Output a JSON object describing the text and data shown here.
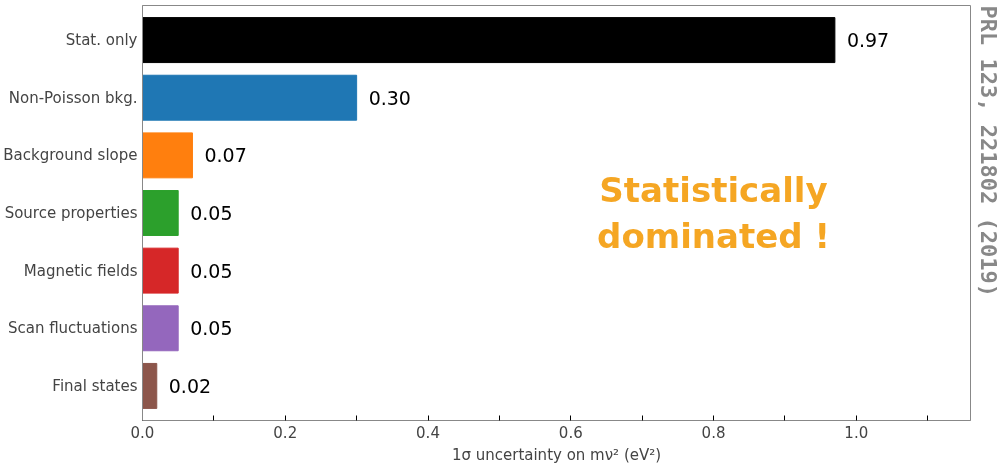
{
  "chart_data": {
    "type": "bar",
    "orientation": "horizontal",
    "categories": [
      "Stat. only",
      "Non-Poisson bkg.",
      "Background slope",
      "Source properties",
      "Magnetic fields",
      "Scan fluctuations",
      "Final states"
    ],
    "values": [
      0.97,
      0.3,
      0.07,
      0.05,
      0.05,
      0.05,
      0.02
    ],
    "colors": [
      "#000000",
      "#1f77b4",
      "#ff7f0e",
      "#2ca02c",
      "#d62728",
      "#9467bd",
      "#8c564b"
    ],
    "value_labels": [
      "0.97",
      "0.30",
      "0.07",
      "0.05",
      "0.05",
      "0.05",
      "0.02"
    ],
    "xlabel": "1σ uncertainty on mν² (eV²)",
    "xlim": [
      0,
      1.16
    ],
    "xticks": [
      {
        "value": 0,
        "label": "0.0"
      },
      {
        "value": 0.1,
        "label": null
      },
      {
        "value": 0.2,
        "label": "0.2"
      },
      {
        "value": 0.3,
        "label": null
      },
      {
        "value": 0.4,
        "label": "0.4"
      },
      {
        "value": 0.5,
        "label": null
      },
      {
        "value": 0.6,
        "label": "0.6"
      },
      {
        "value": 0.7,
        "label": null
      },
      {
        "value": 0.8,
        "label": "0.8"
      },
      {
        "value": 0.9,
        "label": null
      },
      {
        "value": 1,
        "label": "1.0"
      },
      {
        "value": 1.1,
        "label": null
      }
    ],
    "grid": false,
    "annotations": [
      "Statistically\ndominated !",
      "PRL 123, 221802 (2019)"
    ]
  }
}
